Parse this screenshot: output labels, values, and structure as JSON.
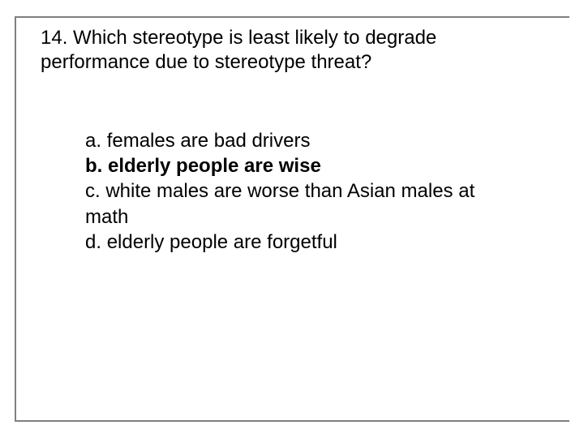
{
  "question": {
    "number": "14.",
    "text": "Which stereotype is least likely to degrade performance due to stereotype threat?"
  },
  "options": [
    {
      "letter": "a.",
      "text": "females are bad drivers",
      "bold": false
    },
    {
      "letter": "b.",
      "text": "elderly people are wise",
      "bold": true
    },
    {
      "letter": "c.",
      "text": "white males are worse than Asian males at math",
      "bold": false
    },
    {
      "letter": "d.",
      "text": "elderly people are forgetful",
      "bold": false
    }
  ],
  "colors": {
    "frame_border": "#808080",
    "text": "#000000",
    "background": "#ffffff"
  },
  "typography": {
    "question_fontsize": 24,
    "option_fontsize": 24,
    "font_family": "Arial"
  }
}
